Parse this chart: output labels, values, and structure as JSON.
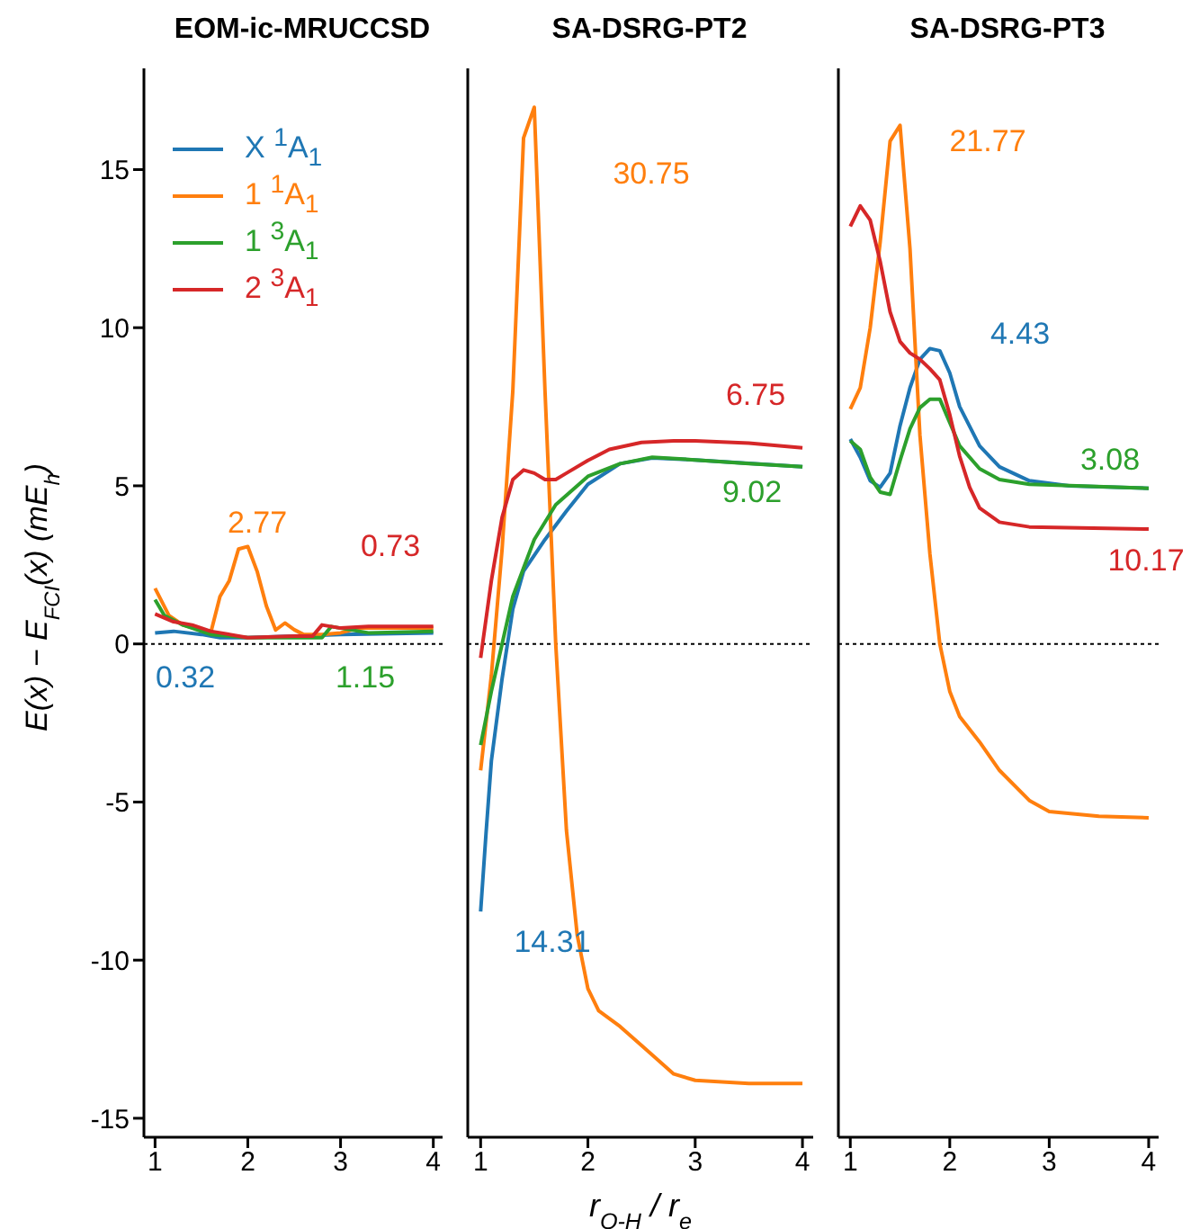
{
  "chart_data": [
    {
      "type": "line",
      "title": "EOM-ic-MRUCCSD",
      "ylabel": "E(x) − E$_{FCI}$(x) (mE$_{h}$)",
      "xlim": [
        0.88,
        4.1
      ],
      "xticks": [
        1,
        2,
        3,
        4
      ],
      "ylim": [
        -15.6,
        18.2
      ],
      "yticks": [
        -15,
        -10,
        -5,
        0,
        5,
        10,
        15
      ],
      "grid": false,
      "legend": "top left",
      "marker": "none",
      "line_style": "solid",
      "ref_lines": [
        {
          "axis": "y",
          "value": 0,
          "color": "#000000",
          "line_style": "dotted"
        }
      ],
      "annotations": [
        "0.32",
        "2.77",
        "1.15",
        "0.73"
      ],
      "series": [
        {
          "name": "X $^{1}$A$_{1}$",
          "color": "#1f77b4",
          "x": [
            1.0,
            1.2,
            1.5,
            1.7,
            2.0,
            3.0,
            4.0
          ],
          "values": [
            0.35,
            0.4,
            0.3,
            0.2,
            0.2,
            0.3,
            0.35
          ]
        },
        {
          "name": "1 $^{1}$A$_{1}$",
          "color": "#ff7f0e",
          "x": [
            1.0,
            1.15,
            1.3,
            1.5,
            1.6,
            1.7,
            1.8,
            1.9,
            2.0,
            2.1,
            2.2,
            2.3,
            2.4,
            2.5,
            2.6,
            2.8,
            3.0,
            3.2,
            4.0
          ],
          "values": [
            1.76,
            0.9,
            0.6,
            0.44,
            0.35,
            1.5,
            2.0,
            3.0,
            3.08,
            2.3,
            1.2,
            0.44,
            0.66,
            0.45,
            0.3,
            0.3,
            0.35,
            0.5,
            0.5
          ]
        },
        {
          "name": "1 $^{3}$A$_{1}$",
          "color": "#2ca02c",
          "x": [
            1.0,
            1.1,
            1.3,
            1.6,
            2.0,
            2.5,
            2.8,
            2.9,
            3.0,
            3.3,
            4.0
          ],
          "values": [
            1.4,
            0.9,
            0.6,
            0.3,
            0.2,
            0.2,
            0.2,
            0.55,
            0.5,
            0.35,
            0.4
          ]
        },
        {
          "name": "2 $^{3}$A$_{1}$",
          "color": "#d62728",
          "x": [
            1.0,
            1.2,
            1.4,
            1.6,
            2.0,
            2.5,
            2.7,
            2.8,
            3.0,
            3.3,
            4.0
          ],
          "values": [
            0.95,
            0.7,
            0.6,
            0.4,
            0.2,
            0.25,
            0.25,
            0.6,
            0.5,
            0.55,
            0.55
          ]
        }
      ]
    },
    {
      "type": "line",
      "title": "SA-DSRG-PT2",
      "xlabel": "r$_{O-H}$ / r$_{e}$",
      "xlim": [
        0.88,
        4.1
      ],
      "xticks": [
        1,
        2,
        3,
        4
      ],
      "ylim": [
        -15.6,
        18.2
      ],
      "yticks": [
        -15,
        -10,
        -5,
        0,
        5,
        10,
        15
      ],
      "tick_labels": "x",
      "grid": false,
      "marker": "none",
      "line_style": "solid",
      "ref_lines": [
        {
          "axis": "y",
          "value": 0,
          "color": "#000000",
          "line_style": "dotted"
        }
      ],
      "annotations": [
        "14.31",
        "30.75",
        "9.02",
        "6.75"
      ],
      "series": [
        {
          "color": "#1f77b4",
          "x": [
            1.0,
            1.05,
            1.1,
            1.2,
            1.3,
            1.4,
            1.6,
            1.8,
            2.0,
            2.3,
            2.6,
            3.0,
            4.0
          ],
          "values": [
            -8.46,
            -6,
            -3.7,
            -1.1,
            1.1,
            2.3,
            3.3,
            4.2,
            5.05,
            5.7,
            5.88,
            5.82,
            5.6
          ]
        },
        {
          "color": "#ff7f0e",
          "x": [
            1.0,
            1.1,
            1.2,
            1.3,
            1.4,
            1.5,
            1.6,
            1.7,
            1.8,
            1.9,
            2.0,
            2.1,
            2.3,
            2.5,
            2.8,
            3.0,
            3.5,
            4.0
          ],
          "values": [
            -4.0,
            -1,
            3,
            8,
            16.0,
            16.97,
            8,
            0,
            -5.9,
            -9.2,
            -10.9,
            -11.6,
            -12.1,
            -12.7,
            -13.6,
            -13.8,
            -13.9,
            -13.9
          ]
        },
        {
          "color": "#2ca02c",
          "x": [
            1.0,
            1.1,
            1.2,
            1.3,
            1.5,
            1.7,
            2.0,
            2.3,
            2.6,
            3.0,
            3.5,
            4.0
          ],
          "values": [
            -3.2,
            -1.5,
            0,
            1.5,
            3.3,
            4.4,
            5.3,
            5.7,
            5.9,
            5.82,
            5.7,
            5.6
          ]
        },
        {
          "color": "#d62728",
          "x": [
            1.0,
            1.1,
            1.2,
            1.3,
            1.4,
            1.5,
            1.6,
            1.7,
            1.8,
            2.0,
            2.2,
            2.5,
            2.8,
            3.0,
            3.5,
            4.0
          ],
          "values": [
            -0.44,
            2,
            4,
            5.2,
            5.5,
            5.4,
            5.2,
            5.2,
            5.4,
            5.8,
            6.15,
            6.37,
            6.42,
            6.42,
            6.35,
            6.2
          ]
        }
      ]
    },
    {
      "type": "line",
      "title": "SA-DSRG-PT3",
      "xlim": [
        0.88,
        4.1
      ],
      "xticks": [
        1,
        2,
        3,
        4
      ],
      "ylim": [
        -15.6,
        18.2
      ],
      "yticks": [
        -15,
        -10,
        -5,
        0,
        5,
        10,
        15
      ],
      "tick_labels": "x",
      "grid": false,
      "marker": "none",
      "line_style": "solid",
      "ref_lines": [
        {
          "axis": "y",
          "value": 0,
          "color": "#000000",
          "line_style": "dotted"
        }
      ],
      "annotations": [
        "4.43",
        "21.77",
        "3.08",
        "10.17"
      ],
      "series": [
        {
          "color": "#1f77b4",
          "x": [
            1.0,
            1.1,
            1.2,
            1.3,
            1.4,
            1.5,
            1.6,
            1.7,
            1.8,
            1.9,
            2.0,
            2.1,
            2.3,
            2.5,
            2.8,
            3.2,
            4.0
          ],
          "values": [
            6.48,
            5.9,
            5.16,
            4.95,
            5.4,
            6.9,
            8.1,
            9.0,
            9.34,
            9.27,
            8.57,
            7.5,
            6.26,
            5.6,
            5.16,
            5.0,
            4.92
          ]
        },
        {
          "color": "#ff7f0e",
          "x": [
            1.0,
            1.1,
            1.2,
            1.3,
            1.4,
            1.5,
            1.6,
            1.7,
            1.8,
            1.9,
            2.0,
            2.1,
            2.3,
            2.5,
            2.8,
            3.0,
            3.5,
            4.0
          ],
          "values": [
            7.43,
            8.1,
            10.0,
            12.7,
            15.9,
            16.4,
            12.5,
            6.6,
            2.86,
            0,
            -1.5,
            -2.3,
            -3.1,
            -4.0,
            -4.95,
            -5.3,
            -5.45,
            -5.5
          ]
        },
        {
          "color": "#2ca02c",
          "x": [
            1.0,
            1.1,
            1.2,
            1.3,
            1.4,
            1.5,
            1.6,
            1.7,
            1.8,
            1.9,
            2.0,
            2.1,
            2.3,
            2.5,
            2.8,
            4.0
          ],
          "values": [
            6.42,
            6.15,
            5.27,
            4.8,
            4.73,
            5.8,
            6.8,
            7.47,
            7.74,
            7.74,
            7.0,
            6.26,
            5.54,
            5.2,
            5.05,
            4.92
          ]
        },
        {
          "color": "#d62728",
          "x": [
            1.0,
            1.1,
            1.2,
            1.3,
            1.4,
            1.5,
            1.6,
            1.7,
            1.8,
            1.9,
            2.0,
            2.1,
            2.2,
            2.3,
            2.5,
            2.8,
            4.0
          ],
          "values": [
            13.2,
            13.85,
            13.4,
            12.1,
            10.5,
            9.56,
            9.2,
            9.0,
            8.7,
            8.35,
            7.25,
            5.93,
            4.95,
            4.3,
            3.85,
            3.7,
            3.63
          ]
        }
      ]
    }
  ]
}
